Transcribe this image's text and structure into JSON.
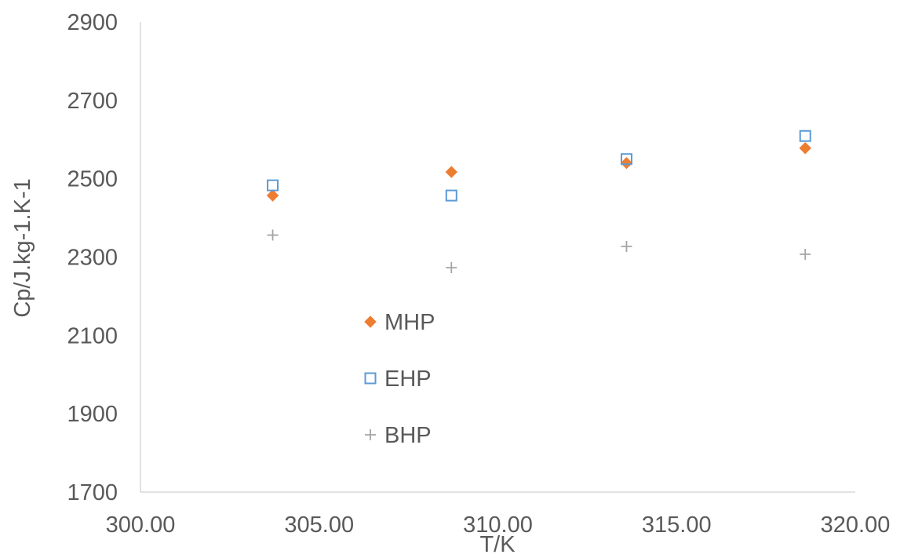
{
  "chart_data": {
    "type": "scatter",
    "title": "",
    "xlabel": "T/K",
    "ylabel": "Cp/J.kg-1.K-1",
    "xlim": [
      300,
      320
    ],
    "ylim": [
      1700,
      2900
    ],
    "x_ticks": [
      "300.00",
      "305.00",
      "310.00",
      "315.00",
      "320.00"
    ],
    "y_ticks": [
      "1700",
      "1900",
      "2100",
      "2300",
      "2500",
      "2700",
      "2900"
    ],
    "grid": false,
    "legend_position": "center-left",
    "series": [
      {
        "name": "MHP",
        "marker": "diamond",
        "color": "#ED7D31",
        "x": [
          303.7,
          308.7,
          313.6,
          318.6
        ],
        "y": [
          2457,
          2517,
          2540,
          2578
        ]
      },
      {
        "name": "EHP",
        "marker": "square-open",
        "color": "#5B9BD5",
        "x": [
          303.7,
          308.7,
          313.6,
          318.6
        ],
        "y": [
          2483,
          2457,
          2550,
          2609
        ]
      },
      {
        "name": "BHP",
        "marker": "plus",
        "color": "#A5A5A5",
        "x": [
          303.7,
          308.7,
          313.6,
          318.6
        ],
        "y": [
          2356,
          2273,
          2327,
          2307
        ]
      }
    ]
  }
}
